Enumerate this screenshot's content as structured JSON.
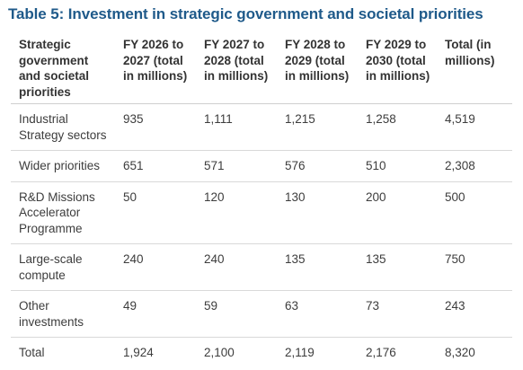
{
  "table": {
    "title": "Table 5: Investment in strategic government and societal priorities",
    "headers": [
      "Strategic government and societal priorities",
      "FY 2026 to 2027 (total in millions)",
      "FY 2027 to 2028 (total in millions)",
      "FY 2028 to 2029 (total in millions)",
      "FY 2029 to 2030 (total in millions)",
      "Total (in millions)"
    ],
    "rows": [
      [
        "Industrial Strategy sectors",
        "935",
        "1,111",
        "1,215",
        "1,258",
        "4,519"
      ],
      [
        "Wider priorities",
        "651",
        "571",
        "576",
        "510",
        "2,308"
      ],
      [
        "R&D Missions Accelerator Programme",
        "50",
        "120",
        "130",
        "200",
        "500"
      ],
      [
        "Large-scale compute",
        "240",
        "240",
        "135",
        "135",
        "750"
      ],
      [
        "Other investments",
        "49",
        "59",
        "63",
        "73",
        "243"
      ],
      [
        "Total",
        "1,924",
        "2,100",
        "2,119",
        "2,176",
        "8,320"
      ]
    ]
  }
}
